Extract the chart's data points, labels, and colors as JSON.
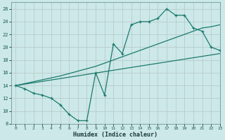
{
  "xlabel": "Humidex (Indice chaleur)",
  "bg_color": "#cce8e8",
  "line_color": "#1a7a6e",
  "line1_x": [
    0,
    1,
    2,
    3,
    4,
    5,
    6,
    7,
    8,
    9,
    10,
    11,
    12,
    13,
    14,
    15,
    16,
    17,
    18,
    19,
    20,
    21,
    22,
    23
  ],
  "line1_y": [
    14,
    13.5,
    12.8,
    12.5,
    12,
    11,
    9.5,
    8.5,
    8.5,
    16,
    12.5,
    20.5,
    19,
    23.5,
    24,
    24,
    24.5,
    26,
    25,
    25,
    23,
    22.5,
    20,
    19.5
  ],
  "line2_x": [
    0,
    5,
    9,
    11,
    13,
    14,
    15,
    16,
    17,
    18,
    19,
    20,
    21,
    22,
    23
  ],
  "line2_y": [
    14,
    15.5,
    17,
    18,
    19,
    19.5,
    20,
    20.5,
    21,
    21.5,
    22,
    22.5,
    23,
    23.2,
    23.5
  ],
  "line3_x": [
    0,
    23
  ],
  "line3_y": [
    14,
    19
  ],
  "xlim": [
    -0.5,
    23
  ],
  "ylim": [
    8,
    27
  ],
  "xticks": [
    0,
    1,
    2,
    3,
    4,
    5,
    6,
    7,
    8,
    9,
    10,
    11,
    12,
    13,
    14,
    15,
    16,
    17,
    18,
    19,
    20,
    21,
    22,
    23
  ],
  "yticks": [
    8,
    10,
    12,
    14,
    16,
    18,
    20,
    22,
    24,
    26
  ]
}
